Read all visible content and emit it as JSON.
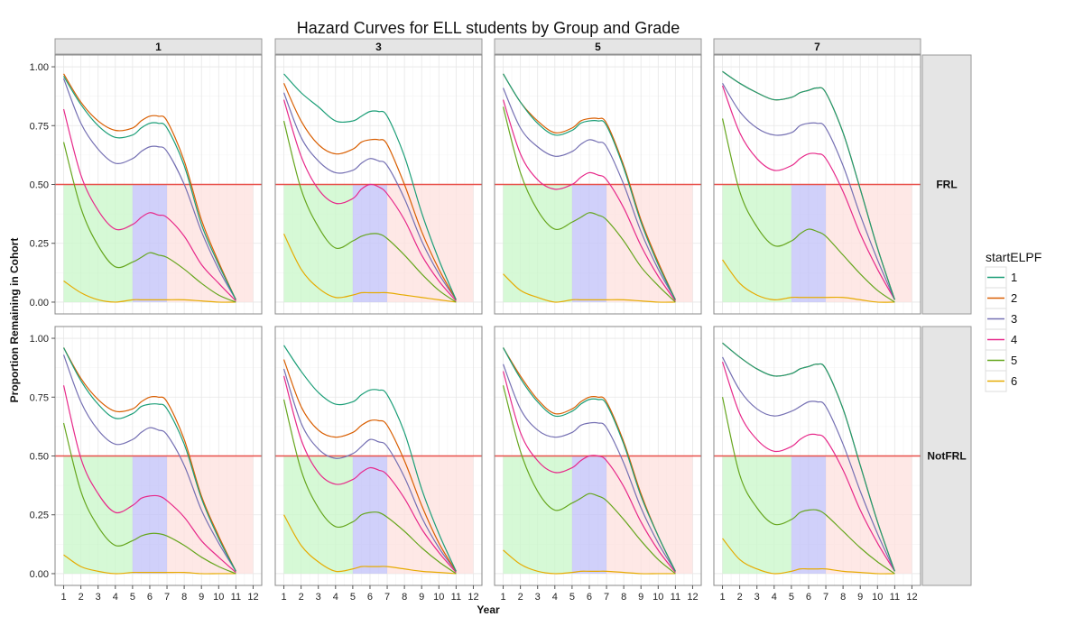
{
  "chart_data": {
    "type": "line",
    "title": "Hazard Curves for ELL students by Group and Grade",
    "xlabel": "Year",
    "ylabel": "Proportion Remaining in Cohort",
    "xlim": [
      0.5,
      12.5
    ],
    "ylim": [
      -0.05,
      1.05
    ],
    "x_ticks": [
      "1",
      "2",
      "3",
      "4",
      "5",
      "6",
      "7",
      "8",
      "9",
      "10",
      "11",
      "12"
    ],
    "y_ticks": [
      "0.00",
      "0.25",
      "0.50",
      "0.75",
      "1.00"
    ],
    "reference_line": {
      "y": 0.5,
      "color": "#e8504a"
    },
    "shaded_bands": [
      {
        "from": 1,
        "to": 5,
        "color": "#c8f7c8"
      },
      {
        "from": 5,
        "to": 7,
        "color": "#c0c0f8"
      },
      {
        "from": 7,
        "to": 12,
        "color": "#fde0de"
      }
    ],
    "grid": true,
    "legend": {
      "title": "startELPF",
      "position": "right",
      "entries": [
        {
          "name": "1",
          "color": "#1b9e77"
        },
        {
          "name": "2",
          "color": "#d95f02"
        },
        {
          "name": "3",
          "color": "#7570b3"
        },
        {
          "name": "4",
          "color": "#e7298a"
        },
        {
          "name": "5",
          "color": "#66a61e"
        },
        {
          "name": "6",
          "color": "#e6ab02"
        }
      ]
    },
    "facets": {
      "columns": [
        "1",
        "3",
        "5",
        "7"
      ],
      "rows": [
        "FRL",
        "NotFRL"
      ]
    },
    "x": [
      1,
      2,
      3,
      4,
      5,
      5.5,
      6,
      6.5,
      7,
      8,
      9,
      10,
      11
    ],
    "panels": [
      {
        "row": "FRL",
        "col": "1",
        "series": [
          {
            "name": "1",
            "values": [
              0.96,
              0.84,
              0.75,
              0.7,
              0.71,
              0.74,
              0.76,
              0.76,
              0.74,
              0.58,
              0.33,
              0.16,
              0.01
            ]
          },
          {
            "name": "2",
            "values": [
              0.97,
              0.85,
              0.77,
              0.73,
              0.74,
              0.77,
              0.79,
              0.79,
              0.77,
              0.6,
              0.35,
              0.17,
              0.01
            ]
          },
          {
            "name": "3",
            "values": [
              0.95,
              0.76,
              0.65,
              0.59,
              0.61,
              0.64,
              0.66,
              0.66,
              0.64,
              0.5,
              0.3,
              0.14,
              0.01
            ]
          },
          {
            "name": "4",
            "values": [
              0.82,
              0.54,
              0.39,
              0.31,
              0.33,
              0.36,
              0.38,
              0.37,
              0.36,
              0.28,
              0.16,
              0.08,
              0.005
            ]
          },
          {
            "name": "5",
            "values": [
              0.68,
              0.4,
              0.24,
              0.15,
              0.17,
              0.19,
              0.21,
              0.2,
              0.19,
              0.14,
              0.08,
              0.03,
              0.0
            ]
          },
          {
            "name": "6",
            "values": [
              0.09,
              0.04,
              0.01,
              0.0,
              0.01,
              0.01,
              0.01,
              0.01,
              0.01,
              0.01,
              0.005,
              0.0,
              0.0
            ]
          }
        ]
      },
      {
        "row": "FRL",
        "col": "3",
        "series": [
          {
            "name": "1",
            "values": [
              0.97,
              0.89,
              0.83,
              0.77,
              0.77,
              0.79,
              0.81,
              0.81,
              0.79,
              0.62,
              0.38,
              0.18,
              0.01
            ]
          },
          {
            "name": "2",
            "values": [
              0.93,
              0.77,
              0.67,
              0.63,
              0.65,
              0.68,
              0.69,
              0.69,
              0.67,
              0.5,
              0.3,
              0.14,
              0.01
            ]
          },
          {
            "name": "3",
            "values": [
              0.89,
              0.7,
              0.6,
              0.55,
              0.56,
              0.59,
              0.61,
              0.6,
              0.58,
              0.44,
              0.26,
              0.12,
              0.01
            ]
          },
          {
            "name": "4",
            "values": [
              0.86,
              0.62,
              0.48,
              0.42,
              0.44,
              0.48,
              0.5,
              0.49,
              0.46,
              0.35,
              0.2,
              0.09,
              0.005
            ]
          },
          {
            "name": "5",
            "values": [
              0.77,
              0.48,
              0.32,
              0.23,
              0.26,
              0.28,
              0.29,
              0.29,
              0.27,
              0.2,
              0.12,
              0.05,
              0.0
            ]
          },
          {
            "name": "6",
            "values": [
              0.29,
              0.14,
              0.06,
              0.02,
              0.03,
              0.04,
              0.04,
              0.04,
              0.04,
              0.03,
              0.02,
              0.01,
              0.0
            ]
          }
        ]
      },
      {
        "row": "FRL",
        "col": "5",
        "series": [
          {
            "name": "1",
            "values": [
              0.97,
              0.85,
              0.76,
              0.71,
              0.73,
              0.76,
              0.77,
              0.77,
              0.75,
              0.57,
              0.34,
              0.16,
              0.01
            ]
          },
          {
            "name": "2",
            "values": [
              0.97,
              0.85,
              0.77,
              0.72,
              0.74,
              0.77,
              0.78,
              0.78,
              0.76,
              0.58,
              0.35,
              0.17,
              0.01
            ]
          },
          {
            "name": "3",
            "values": [
              0.91,
              0.74,
              0.66,
              0.62,
              0.64,
              0.67,
              0.69,
              0.68,
              0.66,
              0.5,
              0.3,
              0.14,
              0.01
            ]
          },
          {
            "name": "4",
            "values": [
              0.86,
              0.63,
              0.52,
              0.48,
              0.5,
              0.53,
              0.55,
              0.54,
              0.52,
              0.4,
              0.24,
              0.11,
              0.005
            ]
          },
          {
            "name": "5",
            "values": [
              0.83,
              0.55,
              0.39,
              0.31,
              0.34,
              0.36,
              0.38,
              0.37,
              0.35,
              0.26,
              0.15,
              0.07,
              0.0
            ]
          },
          {
            "name": "6",
            "values": [
              0.12,
              0.05,
              0.02,
              0.0,
              0.01,
              0.01,
              0.01,
              0.01,
              0.01,
              0.01,
              0.005,
              0.0,
              0.0
            ]
          }
        ]
      },
      {
        "row": "FRL",
        "col": "7",
        "series": [
          {
            "name": "1",
            "values": [
              0.98,
              0.93,
              0.89,
              0.86,
              0.87,
              0.89,
              0.9,
              0.91,
              0.89,
              0.72,
              0.48,
              0.23,
              0.01
            ]
          },
          {
            "name": "2",
            "values": [
              0.98,
              0.93,
              0.89,
              0.86,
              0.87,
              0.89,
              0.9,
              0.91,
              0.89,
              0.72,
              0.48,
              0.23,
              0.01
            ]
          },
          {
            "name": "3",
            "values": [
              0.93,
              0.81,
              0.74,
              0.71,
              0.72,
              0.75,
              0.76,
              0.76,
              0.74,
              0.58,
              0.37,
              0.18,
              0.01
            ]
          },
          {
            "name": "4",
            "values": [
              0.92,
              0.72,
              0.61,
              0.56,
              0.58,
              0.61,
              0.63,
              0.63,
              0.61,
              0.47,
              0.29,
              0.14,
              0.01
            ]
          },
          {
            "name": "5",
            "values": [
              0.78,
              0.47,
              0.32,
              0.24,
              0.26,
              0.29,
              0.31,
              0.3,
              0.28,
              0.2,
              0.12,
              0.05,
              0.0
            ]
          },
          {
            "name": "6",
            "values": [
              0.18,
              0.08,
              0.03,
              0.01,
              0.02,
              0.02,
              0.02,
              0.02,
              0.02,
              0.02,
              0.01,
              0.0,
              0.0
            ]
          }
        ]
      },
      {
        "row": "NotFRL",
        "col": "1",
        "series": [
          {
            "name": "1",
            "values": [
              0.96,
              0.82,
              0.72,
              0.66,
              0.68,
              0.71,
              0.72,
              0.72,
              0.7,
              0.55,
              0.32,
              0.15,
              0.01
            ]
          },
          {
            "name": "2",
            "values": [
              0.96,
              0.83,
              0.74,
              0.69,
              0.7,
              0.73,
              0.75,
              0.75,
              0.73,
              0.57,
              0.33,
              0.16,
              0.01
            ]
          },
          {
            "name": "3",
            "values": [
              0.93,
              0.73,
              0.61,
              0.55,
              0.57,
              0.6,
              0.62,
              0.61,
              0.59,
              0.46,
              0.27,
              0.13,
              0.01
            ]
          },
          {
            "name": "4",
            "values": [
              0.8,
              0.49,
              0.34,
              0.26,
              0.29,
              0.32,
              0.33,
              0.33,
              0.31,
              0.24,
              0.14,
              0.07,
              0.005
            ]
          },
          {
            "name": "5",
            "values": [
              0.64,
              0.35,
              0.2,
              0.12,
              0.14,
              0.16,
              0.17,
              0.17,
              0.16,
              0.12,
              0.07,
              0.03,
              0.0
            ]
          },
          {
            "name": "6",
            "values": [
              0.08,
              0.03,
              0.01,
              0.0,
              0.005,
              0.005,
              0.005,
              0.005,
              0.005,
              0.005,
              0.0,
              0.0,
              0.0
            ]
          }
        ]
      },
      {
        "row": "NotFRL",
        "col": "3",
        "series": [
          {
            "name": "1",
            "values": [
              0.97,
              0.86,
              0.77,
              0.72,
              0.73,
              0.76,
              0.78,
              0.78,
              0.76,
              0.6,
              0.36,
              0.17,
              0.01
            ]
          },
          {
            "name": "2",
            "values": [
              0.91,
              0.71,
              0.61,
              0.58,
              0.6,
              0.63,
              0.65,
              0.65,
              0.63,
              0.48,
              0.29,
              0.13,
              0.01
            ]
          },
          {
            "name": "3",
            "values": [
              0.87,
              0.64,
              0.53,
              0.49,
              0.51,
              0.54,
              0.57,
              0.56,
              0.54,
              0.41,
              0.24,
              0.11,
              0.01
            ]
          },
          {
            "name": "4",
            "values": [
              0.84,
              0.57,
              0.43,
              0.38,
              0.4,
              0.43,
              0.45,
              0.44,
              0.42,
              0.32,
              0.19,
              0.09,
              0.005
            ]
          },
          {
            "name": "5",
            "values": [
              0.74,
              0.44,
              0.28,
              0.2,
              0.22,
              0.25,
              0.26,
              0.26,
              0.24,
              0.18,
              0.11,
              0.05,
              0.0
            ]
          },
          {
            "name": "6",
            "values": [
              0.25,
              0.12,
              0.05,
              0.01,
              0.02,
              0.03,
              0.03,
              0.03,
              0.03,
              0.02,
              0.01,
              0.005,
              0.0
            ]
          }
        ]
      },
      {
        "row": "NotFRL",
        "col": "5",
        "series": [
          {
            "name": "1",
            "values": [
              0.96,
              0.83,
              0.73,
              0.67,
              0.69,
              0.72,
              0.74,
              0.74,
              0.72,
              0.55,
              0.33,
              0.16,
              0.01
            ]
          },
          {
            "name": "2",
            "values": [
              0.96,
              0.84,
              0.74,
              0.68,
              0.7,
              0.73,
              0.75,
              0.75,
              0.73,
              0.56,
              0.34,
              0.16,
              0.01
            ]
          },
          {
            "name": "3",
            "values": [
              0.89,
              0.7,
              0.61,
              0.58,
              0.6,
              0.63,
              0.64,
              0.64,
              0.62,
              0.47,
              0.28,
              0.13,
              0.01
            ]
          },
          {
            "name": "4",
            "values": [
              0.86,
              0.6,
              0.48,
              0.43,
              0.45,
              0.48,
              0.5,
              0.5,
              0.48,
              0.37,
              0.22,
              0.1,
              0.005
            ]
          },
          {
            "name": "5",
            "values": [
              0.8,
              0.52,
              0.35,
              0.27,
              0.3,
              0.32,
              0.34,
              0.33,
              0.31,
              0.23,
              0.14,
              0.06,
              0.0
            ]
          },
          {
            "name": "6",
            "values": [
              0.1,
              0.04,
              0.01,
              0.0,
              0.005,
              0.01,
              0.01,
              0.01,
              0.01,
              0.005,
              0.0,
              0.0,
              0.0
            ]
          }
        ]
      },
      {
        "row": "NotFRL",
        "col": "7",
        "series": [
          {
            "name": "1",
            "values": [
              0.98,
              0.92,
              0.87,
              0.84,
              0.85,
              0.87,
              0.88,
              0.89,
              0.87,
              0.7,
              0.46,
              0.22,
              0.01
            ]
          },
          {
            "name": "2",
            "values": [
              0.98,
              0.92,
              0.87,
              0.84,
              0.85,
              0.87,
              0.88,
              0.89,
              0.87,
              0.7,
              0.46,
              0.22,
              0.01
            ]
          },
          {
            "name": "3",
            "values": [
              0.92,
              0.78,
              0.7,
              0.67,
              0.69,
              0.71,
              0.73,
              0.73,
              0.71,
              0.55,
              0.35,
              0.17,
              0.01
            ]
          },
          {
            "name": "4",
            "values": [
              0.9,
              0.68,
              0.57,
              0.52,
              0.54,
              0.57,
              0.59,
              0.59,
              0.57,
              0.44,
              0.27,
              0.13,
              0.01
            ]
          },
          {
            "name": "5",
            "values": [
              0.75,
              0.42,
              0.28,
              0.21,
              0.23,
              0.26,
              0.27,
              0.27,
              0.25,
              0.18,
              0.11,
              0.05,
              0.0
            ]
          },
          {
            "name": "6",
            "values": [
              0.15,
              0.06,
              0.02,
              0.0,
              0.01,
              0.02,
              0.02,
              0.02,
              0.02,
              0.01,
              0.005,
              0.0,
              0.0
            ]
          }
        ]
      }
    ]
  }
}
